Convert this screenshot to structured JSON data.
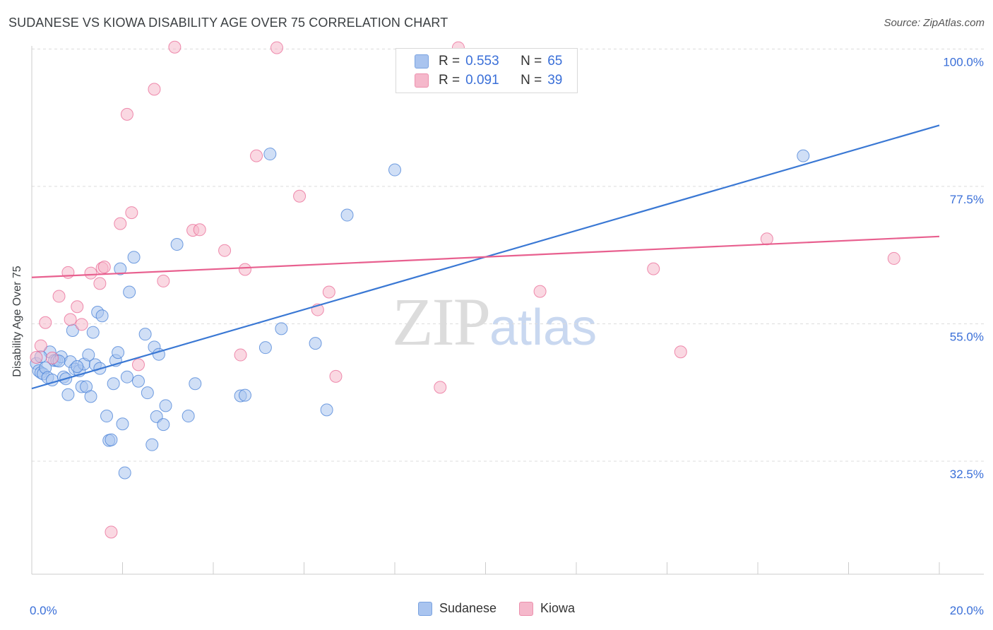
{
  "title": "SUDANESE VS KIOWA DISABILITY AGE OVER 75 CORRELATION CHART",
  "source": "Source: ZipAtlas.com",
  "watermark": {
    "zip": "ZIP",
    "atlas": "atlas"
  },
  "legend": {
    "rows": [
      {
        "r_label": "R =",
        "r_value": "0.553",
        "n_label": "N =",
        "n_value": "65",
        "color": "#a9c4ef"
      },
      {
        "r_label": "R =",
        "r_value": "0.091",
        "n_label": "N =",
        "n_value": "39",
        "color": "#f5b8cb"
      }
    ]
  },
  "bottom_legend": [
    {
      "label": "Sudanese",
      "color": "#a9c4ef"
    },
    {
      "label": "Kiowa",
      "color": "#f5b8cb"
    }
  ],
  "chart_data": {
    "type": "scatter",
    "title": "SUDANESE VS KIOWA DISABILITY AGE OVER 75 CORRELATION CHART",
    "xlabel": "",
    "ylabel": "Disability Age Over 75",
    "xlim": [
      0,
      20
    ],
    "ylim": [
      14,
      100.5
    ],
    "x_tick_labels": [
      "0.0%",
      "20.0%"
    ],
    "y_ticks": [
      32.5,
      55.0,
      77.5,
      100.0
    ],
    "y_tick_labels": [
      "32.5%",
      "55.0%",
      "77.5%",
      "100.0%"
    ],
    "grid": true,
    "series": [
      {
        "name": "Sudanese",
        "color": "#3a78d4",
        "fill": "#a9c4ef",
        "trend": {
          "x0": 0,
          "y0": 44.4,
          "x1": 20,
          "y1": 87.5
        },
        "points": [
          [
            0.1,
            48.5
          ],
          [
            0.15,
            47.3
          ],
          [
            0.2,
            47.0
          ],
          [
            0.25,
            46.8
          ],
          [
            0.3,
            47.8
          ],
          [
            0.35,
            46.2
          ],
          [
            0.4,
            50.4
          ],
          [
            0.45,
            45.8
          ],
          [
            0.5,
            49.0
          ],
          [
            0.55,
            49.0
          ],
          [
            0.65,
            49.6
          ],
          [
            0.7,
            46.3
          ],
          [
            0.75,
            46.0
          ],
          [
            0.8,
            43.4
          ],
          [
            0.85,
            48.8
          ],
          [
            0.9,
            53.9
          ],
          [
            0.95,
            47.6
          ],
          [
            1.05,
            47.3
          ],
          [
            1.1,
            44.7
          ],
          [
            1.15,
            48.4
          ],
          [
            1.2,
            44.7
          ],
          [
            1.25,
            49.9
          ],
          [
            1.3,
            43.1
          ],
          [
            1.35,
            53.6
          ],
          [
            1.4,
            48.3
          ],
          [
            1.45,
            56.9
          ],
          [
            1.5,
            47.7
          ],
          [
            1.55,
            56.3
          ],
          [
            1.65,
            39.9
          ],
          [
            1.7,
            35.9
          ],
          [
            1.75,
            36.0
          ],
          [
            1.8,
            45.2
          ],
          [
            1.85,
            49.0
          ],
          [
            1.9,
            50.3
          ],
          [
            1.95,
            64.0
          ],
          [
            2.0,
            38.6
          ],
          [
            2.05,
            30.6
          ],
          [
            2.1,
            46.3
          ],
          [
            2.15,
            60.2
          ],
          [
            2.25,
            65.9
          ],
          [
            2.35,
            45.6
          ],
          [
            2.5,
            53.3
          ],
          [
            2.55,
            43.7
          ],
          [
            2.65,
            35.2
          ],
          [
            2.7,
            51.2
          ],
          [
            2.75,
            39.8
          ],
          [
            2.8,
            50.0
          ],
          [
            2.9,
            38.5
          ],
          [
            2.95,
            41.6
          ],
          [
            3.2,
            68.0
          ],
          [
            3.45,
            39.9
          ],
          [
            3.6,
            45.2
          ],
          [
            4.6,
            43.2
          ],
          [
            4.7,
            43.3
          ],
          [
            5.15,
            51.1
          ],
          [
            5.25,
            82.8
          ],
          [
            5.5,
            54.2
          ],
          [
            6.25,
            51.8
          ],
          [
            6.5,
            40.9
          ],
          [
            6.95,
            72.8
          ],
          [
            8.0,
            80.2
          ],
          [
            17.0,
            82.5
          ],
          [
            0.2,
            49.6
          ],
          [
            0.6,
            48.9
          ],
          [
            1.0,
            48.0
          ]
        ]
      },
      {
        "name": "Kiowa",
        "color": "#e8608f",
        "fill": "#f5b8cb",
        "trend": {
          "x0": 0,
          "y0": 62.6,
          "x1": 20,
          "y1": 69.3
        },
        "points": [
          [
            0.1,
            49.5
          ],
          [
            0.2,
            51.4
          ],
          [
            0.3,
            55.2
          ],
          [
            0.45,
            49.4
          ],
          [
            0.6,
            59.5
          ],
          [
            0.8,
            63.4
          ],
          [
            0.85,
            55.7
          ],
          [
            1.0,
            57.8
          ],
          [
            1.1,
            54.9
          ],
          [
            1.3,
            63.3
          ],
          [
            1.5,
            61.6
          ],
          [
            1.55,
            64.1
          ],
          [
            1.6,
            64.3
          ],
          [
            1.75,
            20.9
          ],
          [
            1.95,
            71.4
          ],
          [
            2.1,
            89.3
          ],
          [
            2.2,
            73.2
          ],
          [
            2.35,
            48.3
          ],
          [
            2.7,
            93.4
          ],
          [
            2.9,
            62.0
          ],
          [
            3.15,
            100.3
          ],
          [
            3.55,
            70.3
          ],
          [
            3.7,
            70.4
          ],
          [
            4.25,
            67.0
          ],
          [
            4.6,
            49.9
          ],
          [
            4.7,
            63.9
          ],
          [
            4.95,
            82.5
          ],
          [
            5.4,
            100.2
          ],
          [
            5.9,
            75.9
          ],
          [
            6.3,
            57.3
          ],
          [
            6.55,
            60.2
          ],
          [
            6.7,
            46.4
          ],
          [
            9.0,
            44.6
          ],
          [
            9.4,
            100.2
          ],
          [
            11.2,
            60.3
          ],
          [
            13.7,
            64.0
          ],
          [
            14.3,
            50.4
          ],
          [
            16.2,
            68.9
          ],
          [
            19.0,
            65.7
          ]
        ]
      }
    ]
  }
}
